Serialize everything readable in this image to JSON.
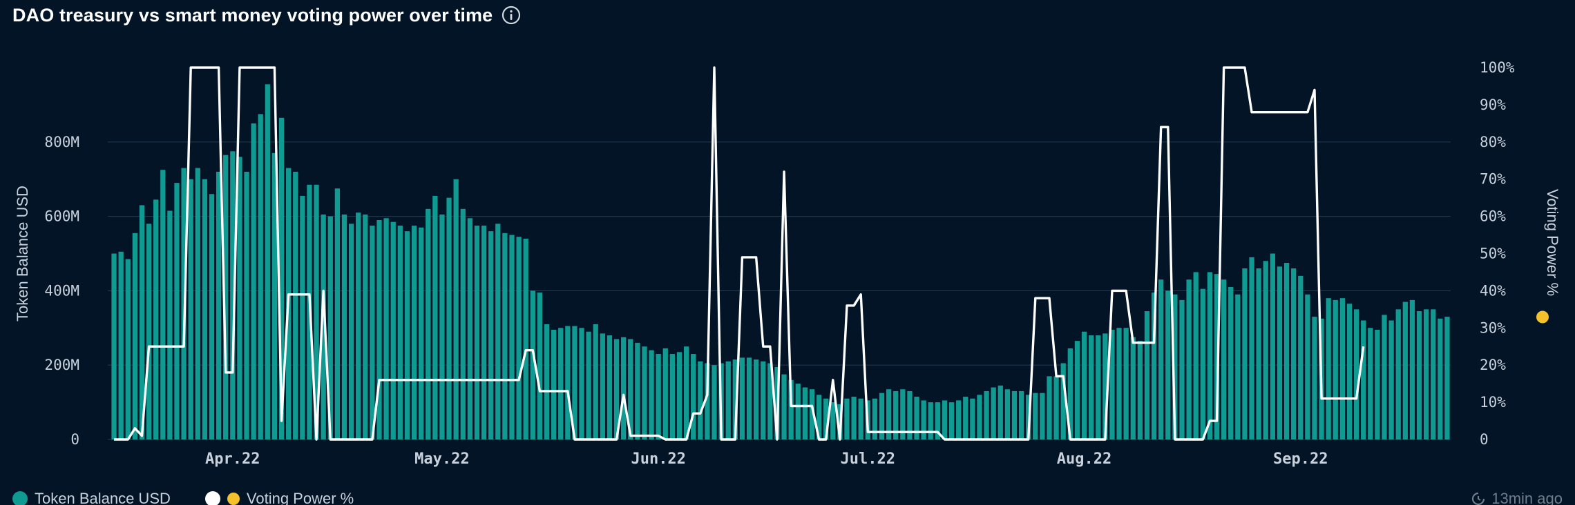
{
  "title": "DAO treasury vs smart money voting power over time",
  "icons": {
    "info": "info-icon",
    "refresh": "refresh-icon",
    "emoji": "sunglasses-emoji-icon"
  },
  "colors": {
    "background": "#021426",
    "bar": "#0f9a92",
    "line": "#ffffff",
    "grid": "#1c3650",
    "axis_text": "#c9d2dc"
  },
  "legend": {
    "bars_label": "Token Balance USD",
    "line_label": "Voting Power %"
  },
  "updated": "13min ago",
  "chart_data": {
    "type": "bar+line",
    "title": "DAO treasury vs smart money voting power over time",
    "xlabel": "",
    "ylabel_left": "Token Balance USD",
    "ylabel_right": "Voting Power %",
    "ylim_left": [
      0,
      1000
    ],
    "ylim_right": [
      0,
      100
    ],
    "yticks_left": [
      {
        "value": 0,
        "label": "0"
      },
      {
        "value": 200,
        "label": "200M"
      },
      {
        "value": 400,
        "label": "400M"
      },
      {
        "value": 600,
        "label": "600M"
      },
      {
        "value": 800,
        "label": "800M"
      }
    ],
    "yticks_right": [
      {
        "value": 0,
        "label": "0"
      },
      {
        "value": 10,
        "label": "10%"
      },
      {
        "value": 20,
        "label": "20%"
      },
      {
        "value": 30,
        "label": "30%"
      },
      {
        "value": 40,
        "label": "40%"
      },
      {
        "value": 50,
        "label": "50%"
      },
      {
        "value": 60,
        "label": "60%"
      },
      {
        "value": 70,
        "label": "70%"
      },
      {
        "value": 80,
        "label": "80%"
      },
      {
        "value": 90,
        "label": "90%"
      },
      {
        "value": 100,
        "label": "100%"
      }
    ],
    "x_start_date": "2022-03-15",
    "xticks": [
      {
        "date": "2022-04-01",
        "label": "Apr.22"
      },
      {
        "date": "2022-05-01",
        "label": "May.22"
      },
      {
        "date": "2022-06-01",
        "label": "Jun.22"
      },
      {
        "date": "2022-07-01",
        "label": "Jul.22"
      },
      {
        "date": "2022-08-01",
        "label": "Aug.22"
      },
      {
        "date": "2022-09-01",
        "label": "Sep.22"
      }
    ],
    "series": [
      {
        "name": "Token Balance USD",
        "type": "bar",
        "axis": "left",
        "unit": "M USD",
        "values": [
          500,
          505,
          485,
          555,
          630,
          580,
          645,
          725,
          615,
          690,
          730,
          700,
          730,
          700,
          660,
          720,
          765,
          775,
          760,
          720,
          850,
          875,
          955,
          770,
          865,
          730,
          720,
          655,
          685,
          685,
          605,
          600,
          675,
          605,
          580,
          610,
          605,
          575,
          590,
          595,
          585,
          575,
          560,
          575,
          570,
          620,
          655,
          605,
          650,
          700,
          620,
          595,
          575,
          575,
          560,
          580,
          555,
          550,
          545,
          540,
          400,
          395,
          310,
          295,
          300,
          305,
          305,
          300,
          290,
          310,
          285,
          280,
          270,
          275,
          270,
          260,
          250,
          240,
          230,
          245,
          230,
          235,
          250,
          230,
          210,
          205,
          200,
          205,
          210,
          215,
          220,
          220,
          215,
          210,
          205,
          195,
          175,
          160,
          150,
          140,
          135,
          120,
          110,
          100,
          95,
          110,
          115,
          110,
          105,
          110,
          125,
          135,
          130,
          135,
          130,
          115,
          105,
          100,
          100,
          105,
          100,
          105,
          115,
          110,
          120,
          130,
          140,
          145,
          135,
          130,
          130,
          120,
          125,
          125,
          170,
          170,
          205,
          245,
          265,
          290,
          280,
          280,
          285,
          295,
          300,
          300,
          275,
          265,
          345,
          395,
          430,
          400,
          390,
          375,
          430,
          450,
          405,
          450,
          445,
          430,
          410,
          390,
          460,
          490,
          460,
          480,
          500,
          465,
          475,
          460,
          440,
          390,
          330,
          325,
          380,
          375,
          380,
          365,
          350,
          320,
          300,
          295,
          335,
          320,
          350,
          370,
          375,
          345,
          350,
          350,
          325,
          330
        ]
      },
      {
        "name": "Voting Power %",
        "type": "line",
        "axis": "right",
        "unit": "%",
        "points": [
          {
            "d": 0,
            "v": 0
          },
          {
            "d": 2,
            "v": 0
          },
          {
            "d": 3,
            "v": 3
          },
          {
            "d": 4,
            "v": 1
          },
          {
            "d": 5,
            "v": 25
          },
          {
            "d": 10,
            "v": 25
          },
          {
            "d": 11,
            "v": 100
          },
          {
            "d": 15,
            "v": 100
          },
          {
            "d": 16,
            "v": 18
          },
          {
            "d": 17,
            "v": 18
          },
          {
            "d": 18,
            "v": 100
          },
          {
            "d": 23,
            "v": 100
          },
          {
            "d": 24,
            "v": 5
          },
          {
            "d": 25,
            "v": 39
          },
          {
            "d": 28,
            "v": 39
          },
          {
            "d": 29,
            "v": 0
          },
          {
            "d": 30,
            "v": 40
          },
          {
            "d": 31,
            "v": 0
          },
          {
            "d": 37,
            "v": 0
          },
          {
            "d": 38,
            "v": 16
          },
          {
            "d": 58,
            "v": 16
          },
          {
            "d": 59,
            "v": 24
          },
          {
            "d": 60,
            "v": 24
          },
          {
            "d": 61,
            "v": 13
          },
          {
            "d": 65,
            "v": 13
          },
          {
            "d": 66,
            "v": 0
          },
          {
            "d": 70,
            "v": 0
          },
          {
            "d": 72,
            "v": 0
          },
          {
            "d": 73,
            "v": 12
          },
          {
            "d": 74,
            "v": 1
          },
          {
            "d": 78,
            "v": 1
          },
          {
            "d": 79,
            "v": 0
          },
          {
            "d": 82,
            "v": 0
          },
          {
            "d": 83,
            "v": 7
          },
          {
            "d": 84,
            "v": 7
          },
          {
            "d": 85,
            "v": 12
          },
          {
            "d": 86,
            "v": 100
          },
          {
            "d": 87,
            "v": 0
          },
          {
            "d": 89,
            "v": 0
          },
          {
            "d": 90,
            "v": 49
          },
          {
            "d": 92,
            "v": 49
          },
          {
            "d": 93,
            "v": 25
          },
          {
            "d": 94,
            "v": 25
          },
          {
            "d": 95,
            "v": 0
          },
          {
            "d": 96,
            "v": 72
          },
          {
            "d": 97,
            "v": 9
          },
          {
            "d": 100,
            "v": 9
          },
          {
            "d": 101,
            "v": 0
          },
          {
            "d": 102,
            "v": 0
          },
          {
            "d": 103,
            "v": 16
          },
          {
            "d": 104,
            "v": 0
          },
          {
            "d": 105,
            "v": 36
          },
          {
            "d": 106,
            "v": 36
          },
          {
            "d": 107,
            "v": 39
          },
          {
            "d": 108,
            "v": 2
          },
          {
            "d": 118,
            "v": 2
          },
          {
            "d": 119,
            "v": 0
          },
          {
            "d": 131,
            "v": 0
          },
          {
            "d": 132,
            "v": 38
          },
          {
            "d": 134,
            "v": 38
          },
          {
            "d": 135,
            "v": 17
          },
          {
            "d": 136,
            "v": 17
          },
          {
            "d": 137,
            "v": 0
          },
          {
            "d": 142,
            "v": 0
          },
          {
            "d": 143,
            "v": 40
          },
          {
            "d": 145,
            "v": 40
          },
          {
            "d": 146,
            "v": 26
          },
          {
            "d": 149,
            "v": 26
          },
          {
            "d": 150,
            "v": 84
          },
          {
            "d": 151,
            "v": 84
          },
          {
            "d": 152,
            "v": 0
          },
          {
            "d": 156,
            "v": 0
          },
          {
            "d": 157,
            "v": 5
          },
          {
            "d": 158,
            "v": 5
          },
          {
            "d": 159,
            "v": 100
          },
          {
            "d": 162,
            "v": 100
          },
          {
            "d": 163,
            "v": 88
          },
          {
            "d": 171,
            "v": 88
          },
          {
            "d": 172,
            "v": 94
          },
          {
            "d": 173,
            "v": 11
          },
          {
            "d": 178,
            "v": 11
          },
          {
            "d": 179,
            "v": 25
          }
        ]
      }
    ],
    "grid": true,
    "legend_position": "bottom-left"
  }
}
